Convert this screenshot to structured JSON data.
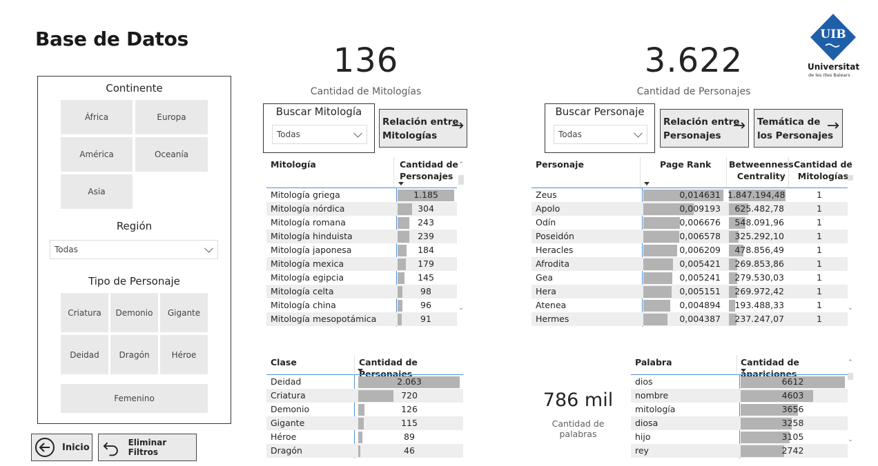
{
  "title": "Base de Datos",
  "filters": {
    "continente_title": "Continente",
    "continentes": [
      "África",
      "Europa",
      "América",
      "Oceanía",
      "Asia"
    ],
    "region_title": "Región",
    "region_value": "Todas",
    "tipo_title": "Tipo de Personaje",
    "tipos": [
      "Criatura",
      "Demonio",
      "Gigante",
      "Deidad",
      "Dragón",
      "Héroe",
      "Femenino"
    ]
  },
  "nav": {
    "inicio": "Inicio",
    "eliminar": "Eliminar Filtros"
  },
  "kpis": {
    "mitologias_value": "136",
    "mitologias_label": "Cantidad de Mitologías",
    "personajes_value": "3.622",
    "personajes_label": "Cantidad de Personajes",
    "palabras_value": "786 mil",
    "palabras_label": "Cantidad de palabras"
  },
  "search": {
    "mitologia_title": "Buscar Mitología",
    "mitologia_value": "Todas",
    "personaje_title": "Buscar Personaje",
    "personaje_value": "Todas"
  },
  "buttons": {
    "rel_mitologias_1": "Relación entre",
    "rel_mitologias_2": "Mitologías",
    "rel_personajes_1": "Relación entre",
    "rel_personajes_2": "Personajes",
    "tematica_1": "Temática de",
    "tematica_2": "los Personajes",
    "arrow": "→"
  },
  "logo": {
    "mark": "UIB",
    "name": "Universitat",
    "sub": "de les Illes Balears",
    "color": "#1f5fa8"
  },
  "mitologias_table": {
    "col1": "Mitología",
    "col2_1": "Cantidad de",
    "col2_2": "Personajes",
    "max": 1185,
    "rows": [
      {
        "name": "Mitología griega",
        "value": 1185,
        "label": "1.185"
      },
      {
        "name": "Mitología nórdica",
        "value": 304,
        "label": "304"
      },
      {
        "name": "Mitología romana",
        "value": 243,
        "label": "243"
      },
      {
        "name": "Mitología hinduista",
        "value": 239,
        "label": "239"
      },
      {
        "name": "Mitología japonesa",
        "value": 184,
        "label": "184"
      },
      {
        "name": "Mitología mexica",
        "value": 179,
        "label": "179"
      },
      {
        "name": "Mitología egipcia",
        "value": 145,
        "label": "145"
      },
      {
        "name": "Mitología celta",
        "value": 98,
        "label": "98"
      },
      {
        "name": "Mitología china",
        "value": 96,
        "label": "96"
      },
      {
        "name": "Mitología mesopotámica",
        "value": 91,
        "label": "91"
      }
    ]
  },
  "personajes_table": {
    "col1": "Personaje",
    "col2": "Page Rank",
    "col3_1": "Betweenness",
    "col3_2": "Centrality",
    "col4_1": "Cantidad de",
    "col4_2": "Mitologías",
    "pr_max": 0.014631,
    "bc_max": 1847194.48,
    "rows": [
      {
        "name": "Zeus",
        "pr": 0.014631,
        "pr_label": "0,014631",
        "bc": 1847194.48,
        "bc_label": "1.847.194,48",
        "mit": "1"
      },
      {
        "name": "Apolo",
        "pr": 0.009193,
        "pr_label": "0,009193",
        "bc": 625482.78,
        "bc_label": "625.482,78",
        "mit": "1"
      },
      {
        "name": "Odín",
        "pr": 0.006676,
        "pr_label": "0,006676",
        "bc": 548091.96,
        "bc_label": "548.091,96",
        "mit": "1"
      },
      {
        "name": "Poseidón",
        "pr": 0.006578,
        "pr_label": "0,006578",
        "bc": 325292.1,
        "bc_label": "325.292,10",
        "mit": "1"
      },
      {
        "name": "Heracles",
        "pr": 0.006209,
        "pr_label": "0,006209",
        "bc": 478856.49,
        "bc_label": "478.856,49",
        "mit": "1"
      },
      {
        "name": "Afrodita",
        "pr": 0.005421,
        "pr_label": "0,005421",
        "bc": 269853.86,
        "bc_label": "269.853,86",
        "mit": "1"
      },
      {
        "name": "Gea",
        "pr": 0.005241,
        "pr_label": "0,005241",
        "bc": 279530.03,
        "bc_label": "279.530,03",
        "mit": "1"
      },
      {
        "name": "Hera",
        "pr": 0.005151,
        "pr_label": "0,005151",
        "bc": 269972.42,
        "bc_label": "269.972,42",
        "mit": "1"
      },
      {
        "name": "Atenea",
        "pr": 0.004894,
        "pr_label": "0,004894",
        "bc": 193488.33,
        "bc_label": "193.488,33",
        "mit": "1"
      },
      {
        "name": "Hermes",
        "pr": 0.004387,
        "pr_label": "0,004387",
        "bc": 237247.07,
        "bc_label": "237.247,07",
        "mit": "1"
      }
    ]
  },
  "clase_table": {
    "col1": "Clase",
    "col2": "Cantidad de Personajes",
    "max": 2063,
    "rows": [
      {
        "name": "Deidad",
        "value": 2063,
        "label": "2.063"
      },
      {
        "name": "Criatura",
        "value": 720,
        "label": "720"
      },
      {
        "name": "Demonio",
        "value": 126,
        "label": "126"
      },
      {
        "name": "Gigante",
        "value": 115,
        "label": "115"
      },
      {
        "name": "Héroe",
        "value": 89,
        "label": "89"
      },
      {
        "name": "Dragón",
        "value": 46,
        "label": "46"
      }
    ]
  },
  "palabras_table": {
    "col1": "Palabra",
    "col2": "Cantidad de apariciones",
    "max": 6612,
    "rows": [
      {
        "name": "dios",
        "value": 6612,
        "label": "6612"
      },
      {
        "name": "nombre",
        "value": 4603,
        "label": "4603"
      },
      {
        "name": "mitología",
        "value": 3656,
        "label": "3656"
      },
      {
        "name": "diosa",
        "value": 3258,
        "label": "3258"
      },
      {
        "name": "hijo",
        "value": 3105,
        "label": "3105"
      },
      {
        "name": "rey",
        "value": 2742,
        "label": "2742"
      }
    ]
  }
}
